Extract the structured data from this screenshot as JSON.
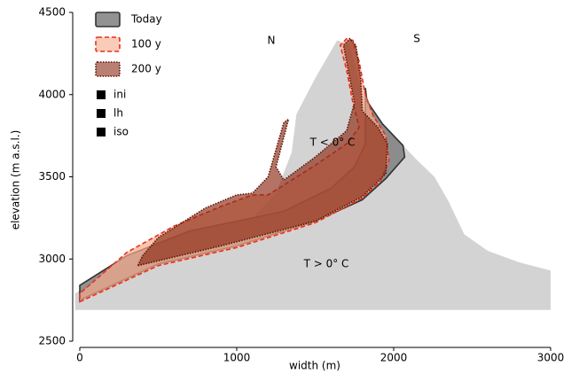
{
  "chart_data": {
    "type": "area",
    "xlabel": "width (m)",
    "ylabel": "elevation (m a.s.l.)",
    "xlim": [
      0,
      3000
    ],
    "ylim": [
      2500,
      4500
    ],
    "xticks": [
      0,
      1000,
      2000,
      3000
    ],
    "yticks": [
      2500,
      3000,
      3500,
      4000,
      4500
    ],
    "terrain": {
      "color": "#d3d3d3",
      "x": [
        -30,
        -30,
        200,
        500,
        800,
        1100,
        1250,
        1350,
        1380,
        1500,
        1640,
        1720,
        1800,
        1900,
        2050,
        2150,
        2260,
        2350,
        2450,
        2600,
        2800,
        3000,
        3000
      ],
      "values": [
        2690,
        2790,
        2930,
        3040,
        3130,
        3250,
        3400,
        3650,
        3880,
        4100,
        4330,
        4300,
        4000,
        3850,
        3700,
        3600,
        3500,
        3350,
        3150,
        3050,
        2980,
        2930,
        2690
      ]
    },
    "series": [
      {
        "name": "Today",
        "color": "#7f7f7f",
        "edge": "#333333",
        "dash": "none",
        "x": [
          0,
          500,
          1000,
          1500,
          1800,
          1950,
          2070,
          2060,
          1930,
          1830,
          1820,
          1820,
          1750,
          1600,
          1300,
          1000,
          700,
          300,
          0
        ],
        "values": [
          2750,
          2970,
          3080,
          3230,
          3360,
          3490,
          3620,
          3690,
          3820,
          3960,
          4040,
          3700,
          3560,
          3430,
          3290,
          3230,
          3170,
          3020,
          2840
        ]
      },
      {
        "name": "100 y",
        "color": "#f7a98a",
        "edge": "#e8301c",
        "dash": "5,3",
        "x": [
          0,
          500,
          1000,
          1500,
          1800,
          1920,
          1970,
          1950,
          1870,
          1820,
          1780,
          1740,
          1700,
          1660,
          1700,
          1740,
          1780,
          1700,
          1500,
          1300,
          1200,
          1100,
          900,
          600,
          300,
          0
        ],
        "values": [
          2740,
          2960,
          3070,
          3220,
          3370,
          3480,
          3600,
          3750,
          3870,
          4000,
          4200,
          4330,
          4340,
          4300,
          4150,
          3950,
          3800,
          3700,
          3570,
          3450,
          3390,
          3390,
          3320,
          3200,
          3040,
          2790
        ]
      },
      {
        "name": "200 y",
        "color": "#8b2a14",
        "edge": "#5a1608",
        "dash": "1.5,1.5",
        "x": [
          370,
          900,
          1500,
          1800,
          1950,
          1960,
          1900,
          1800,
          1790,
          1760,
          1720,
          1680,
          1710,
          1750,
          1700,
          1500,
          1300,
          1250,
          1330,
          1300,
          1200,
          1100,
          1000,
          800,
          500,
          400
        ],
        "values": [
          2960,
          3080,
          3230,
          3380,
          3520,
          3700,
          3800,
          3900,
          4100,
          4300,
          4340,
          4300,
          4150,
          3950,
          3780,
          3620,
          3480,
          3560,
          3850,
          3830,
          3500,
          3400,
          3390,
          3310,
          3130,
          3020
        ]
      }
    ],
    "markers": [
      {
        "name": "ini",
        "color": "#000000"
      },
      {
        "name": "lh",
        "color": "#000000"
      },
      {
        "name": "iso",
        "color": "#000000"
      }
    ],
    "annotations": [
      "N",
      "S",
      "T < 0° C",
      "T > 0° C"
    ]
  }
}
